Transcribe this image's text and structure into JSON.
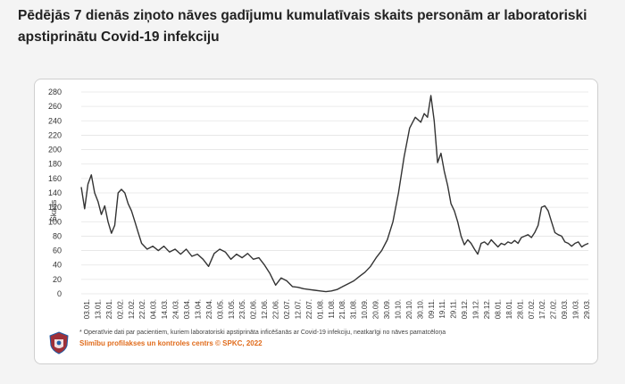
{
  "page": {
    "title": "Pēdējās 7 dienās ziņoto nāves gadījumu kumulatīvais skaits personām ar laboratoriski apstiprinātu Covid-19 infekciju"
  },
  "footer": {
    "note": "* Operatīvie dati par pacientiem, kuriem laboratoriski apstiprināta inficēšanās ar Covid-19 infekciju, neatkarīgi no nāves pamatcēloņa",
    "source": "Slimību profilakses un kontroles centrs © SPKC, 2022"
  },
  "logo": {
    "text": "Slimību profilakses un kontroles centrs"
  },
  "colors": {
    "line": "#333333",
    "grid": "#e4e4e4",
    "source": "#e06b1b",
    "logo_red": "#9e3039",
    "logo_blue": "#1f5ea8"
  },
  "chart_data": {
    "type": "line",
    "title": "",
    "xlabel": "",
    "ylabel": "Skaits",
    "ylim": [
      0,
      280
    ],
    "yticks": [
      0,
      20,
      40,
      60,
      80,
      100,
      120,
      140,
      160,
      180,
      200,
      220,
      240,
      260,
      280
    ],
    "grid": "horizontal",
    "x_tick_labels": [
      "03.01.",
      "13.01.",
      "23.01.",
      "02.02.",
      "12.02.",
      "22.02.",
      "04.03.",
      "14.03.",
      "24.03.",
      "03.04.",
      "13.04.",
      "23.04.",
      "03.05.",
      "13.05.",
      "23.05.",
      "02.06.",
      "12.06.",
      "22.06.",
      "02.07.",
      "12.07.",
      "22.07.",
      "01.08.",
      "11.08.",
      "21.08.",
      "31.08.",
      "10.09.",
      "20.09.",
      "30.09.",
      "10.10.",
      "20.10.",
      "30.10.",
      "09.11.",
      "19.11.",
      "29.11.",
      "09.12.",
      "19.12.",
      "29.12.",
      "08.01.",
      "18.01.",
      "28.01.",
      "07.02.",
      "17.02.",
      "27.02.",
      "09.03.",
      "19.03.",
      "29.03."
    ],
    "x_start": "2021-01-01",
    "x_end": "2022-03-31",
    "points": [
      [
        "2021-01-01",
        148
      ],
      [
        "2021-01-04",
        118
      ],
      [
        "2021-01-07",
        152
      ],
      [
        "2021-01-10",
        165
      ],
      [
        "2021-01-13",
        140
      ],
      [
        "2021-01-16",
        128
      ],
      [
        "2021-01-19",
        110
      ],
      [
        "2021-01-22",
        122
      ],
      [
        "2021-01-25",
        100
      ],
      [
        "2021-01-28",
        84
      ],
      [
        "2021-01-31",
        95
      ],
      [
        "2021-02-03",
        140
      ],
      [
        "2021-02-06",
        145
      ],
      [
        "2021-02-09",
        140
      ],
      [
        "2021-02-12",
        125
      ],
      [
        "2021-02-15",
        115
      ],
      [
        "2021-02-18",
        100
      ],
      [
        "2021-02-21",
        85
      ],
      [
        "2021-02-24",
        70
      ],
      [
        "2021-03-01",
        62
      ],
      [
        "2021-03-06",
        66
      ],
      [
        "2021-03-11",
        60
      ],
      [
        "2021-03-16",
        66
      ],
      [
        "2021-03-21",
        58
      ],
      [
        "2021-03-26",
        62
      ],
      [
        "2021-03-31",
        55
      ],
      [
        "2021-04-05",
        62
      ],
      [
        "2021-04-10",
        52
      ],
      [
        "2021-04-15",
        55
      ],
      [
        "2021-04-20",
        48
      ],
      [
        "2021-04-25",
        38
      ],
      [
        "2021-04-30",
        56
      ],
      [
        "2021-05-05",
        62
      ],
      [
        "2021-05-10",
        58
      ],
      [
        "2021-05-15",
        48
      ],
      [
        "2021-05-20",
        55
      ],
      [
        "2021-05-25",
        50
      ],
      [
        "2021-05-30",
        56
      ],
      [
        "2021-06-04",
        48
      ],
      [
        "2021-06-09",
        50
      ],
      [
        "2021-06-14",
        40
      ],
      [
        "2021-06-19",
        28
      ],
      [
        "2021-06-24",
        12
      ],
      [
        "2021-06-29",
        22
      ],
      [
        "2021-07-04",
        18
      ],
      [
        "2021-07-09",
        10
      ],
      [
        "2021-07-14",
        9
      ],
      [
        "2021-07-19",
        7
      ],
      [
        "2021-07-24",
        6
      ],
      [
        "2021-07-29",
        5
      ],
      [
        "2021-08-03",
        4
      ],
      [
        "2021-08-08",
        3
      ],
      [
        "2021-08-13",
        4
      ],
      [
        "2021-08-18",
        6
      ],
      [
        "2021-08-23",
        10
      ],
      [
        "2021-08-28",
        14
      ],
      [
        "2021-09-02",
        18
      ],
      [
        "2021-09-07",
        24
      ],
      [
        "2021-09-12",
        30
      ],
      [
        "2021-09-17",
        38
      ],
      [
        "2021-09-22",
        50
      ],
      [
        "2021-09-27",
        60
      ],
      [
        "2021-10-02",
        75
      ],
      [
        "2021-10-07",
        100
      ],
      [
        "2021-10-12",
        140
      ],
      [
        "2021-10-17",
        190
      ],
      [
        "2021-10-22",
        230
      ],
      [
        "2021-10-27",
        245
      ],
      [
        "2021-11-01",
        238
      ],
      [
        "2021-11-04",
        250
      ],
      [
        "2021-11-07",
        245
      ],
      [
        "2021-11-10",
        275
      ],
      [
        "2021-11-13",
        240
      ],
      [
        "2021-11-16",
        182
      ],
      [
        "2021-11-19",
        195
      ],
      [
        "2021-11-22",
        170
      ],
      [
        "2021-11-25",
        150
      ],
      [
        "2021-11-28",
        125
      ],
      [
        "2021-12-01",
        115
      ],
      [
        "2021-12-04",
        100
      ],
      [
        "2021-12-07",
        80
      ],
      [
        "2021-12-10",
        68
      ],
      [
        "2021-12-13",
        75
      ],
      [
        "2021-12-16",
        70
      ],
      [
        "2021-12-19",
        62
      ],
      [
        "2021-12-22",
        55
      ],
      [
        "2021-12-25",
        70
      ],
      [
        "2021-12-28",
        72
      ],
      [
        "2021-12-31",
        68
      ],
      [
        "2022-01-03",
        75
      ],
      [
        "2022-01-06",
        70
      ],
      [
        "2022-01-09",
        65
      ],
      [
        "2022-01-12",
        70
      ],
      [
        "2022-01-15",
        68
      ],
      [
        "2022-01-18",
        72
      ],
      [
        "2022-01-21",
        70
      ],
      [
        "2022-01-24",
        74
      ],
      [
        "2022-01-27",
        70
      ],
      [
        "2022-01-30",
        78
      ],
      [
        "2022-02-02",
        80
      ],
      [
        "2022-02-05",
        82
      ],
      [
        "2022-02-08",
        78
      ],
      [
        "2022-02-11",
        85
      ],
      [
        "2022-02-14",
        95
      ],
      [
        "2022-02-17",
        120
      ],
      [
        "2022-02-20",
        122
      ],
      [
        "2022-02-23",
        115
      ],
      [
        "2022-02-26",
        100
      ],
      [
        "2022-03-01",
        85
      ],
      [
        "2022-03-04",
        82
      ],
      [
        "2022-03-07",
        80
      ],
      [
        "2022-03-10",
        72
      ],
      [
        "2022-03-13",
        70
      ],
      [
        "2022-03-16",
        66
      ],
      [
        "2022-03-19",
        70
      ],
      [
        "2022-03-22",
        72
      ],
      [
        "2022-03-25",
        65
      ],
      [
        "2022-03-28",
        68
      ],
      [
        "2022-03-31",
        70
      ]
    ]
  }
}
